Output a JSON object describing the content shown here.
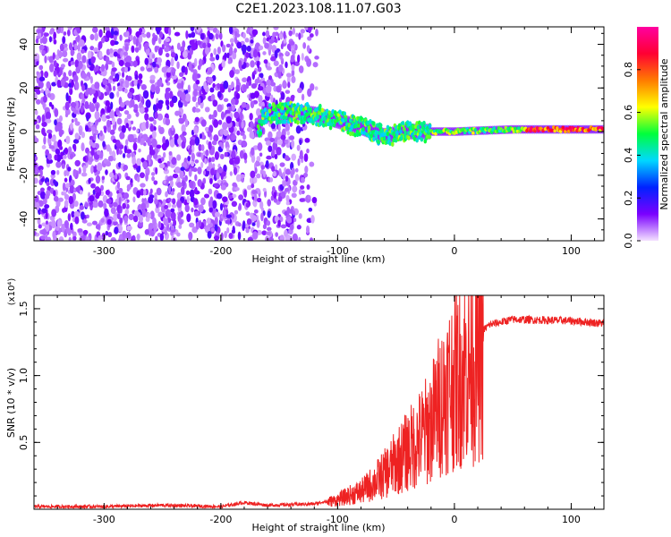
{
  "title": "C2E1.2023.108.11.07.G03",
  "chart_data": [
    {
      "type": "heatmap",
      "xlabel": "Height of straight line (km)",
      "ylabel": "Frequency (Hz)",
      "xlim": [
        -360,
        128
      ],
      "ylim": [
        -50,
        48
      ],
      "x_ticks": [
        -300,
        -200,
        -100,
        0,
        100
      ],
      "x_tick_labels": [
        "-300",
        "-200",
        "-100",
        "0",
        "100"
      ],
      "y_ticks": [
        -40,
        -20,
        0,
        20,
        40
      ],
      "y_tick_labels": [
        "-40",
        "-20",
        "0",
        "20",
        "40"
      ],
      "colorbar": {
        "label": "Normalized spectral amplitude",
        "range": [
          0,
          1
        ],
        "ticks": [
          0.0,
          0.2,
          0.4,
          0.6,
          0.8
        ],
        "tick_labels": [
          "0.0",
          "0.2",
          "0.4",
          "0.6",
          "0.8"
        ],
        "colormap": [
          "#f4e2ff",
          "#7a00ff",
          "#0022ff",
          "#00d8ff",
          "#00ff3c",
          "#ffff00",
          "#ff7b00",
          "#ff0033",
          "#ff00a0"
        ]
      },
      "regions": [
        {
          "description": "noise",
          "x_range": [
            -360,
            -120
          ],
          "freq_range": [
            -50,
            48
          ],
          "amplitude": 0.15
        },
        {
          "description": "signal ridge",
          "points": [
            [
              -165,
              8
            ],
            [
              -140,
              9
            ],
            [
              -120,
              8
            ],
            [
              -100,
              5
            ],
            [
              -80,
              2
            ],
            [
              -60,
              -2
            ],
            [
              -40,
              0
            ],
            [
              -20,
              0
            ],
            [
              0,
              0
            ],
            [
              50,
              1
            ],
            [
              100,
              1
            ],
            [
              128,
              1
            ]
          ],
          "amplitude_range": [
            0.4,
            0.95
          ]
        }
      ]
    },
    {
      "type": "line",
      "xlabel": "Height of straight line (km)",
      "ylabel": "SNR (10 * v/v)",
      "y_multiplier": "(x10⁴)",
      "xlim": [
        -360,
        128
      ],
      "ylim": [
        0,
        1.6
      ],
      "x_ticks": [
        -300,
        -200,
        -100,
        0,
        100
      ],
      "x_tick_labels": [
        "-300",
        "-200",
        "-100",
        "0",
        "100"
      ],
      "y_ticks": [
        0.5,
        1.0,
        1.5
      ],
      "y_tick_labels": [
        "0.5",
        "1.0",
        "1.5"
      ],
      "series": [
        {
          "color": "#ee2222",
          "x": [
            -360,
            -300,
            -250,
            -200,
            -180,
            -160,
            -120,
            -100,
            -90,
            -80,
            -70,
            -60,
            -50,
            -40,
            -30,
            -20,
            -15,
            -10,
            -5,
            0,
            10,
            20,
            30,
            50,
            100,
            128
          ],
          "y": [
            0.02,
            0.02,
            0.03,
            0.02,
            0.05,
            0.03,
            0.04,
            0.08,
            0.12,
            0.15,
            0.22,
            0.3,
            0.4,
            0.5,
            0.6,
            0.72,
            0.85,
            0.95,
            1.05,
            1.1,
            1.2,
            1.3,
            1.38,
            1.42,
            1.41,
            1.39
          ]
        }
      ]
    }
  ]
}
